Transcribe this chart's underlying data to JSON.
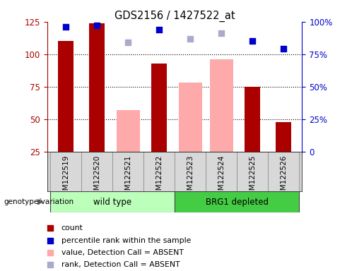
{
  "title": "GDS2156 / 1427522_at",
  "samples": [
    "GSM122519",
    "GSM122520",
    "GSM122521",
    "GSM122522",
    "GSM122523",
    "GSM122524",
    "GSM122525",
    "GSM122526"
  ],
  "count_values": [
    110,
    124,
    null,
    93,
    null,
    null,
    75,
    48
  ],
  "percentile_rank": [
    96,
    97,
    null,
    94,
    null,
    null,
    85,
    79
  ],
  "absent_value": [
    null,
    null,
    57,
    null,
    78,
    96,
    null,
    null
  ],
  "absent_rank": [
    null,
    null,
    84,
    null,
    87,
    91,
    null,
    null
  ],
  "left_ylim": [
    25,
    125
  ],
  "left_yticks": [
    25,
    50,
    75,
    100,
    125
  ],
  "right_ylim": [
    0,
    100
  ],
  "right_yticks": [
    0,
    25,
    50,
    75,
    100
  ],
  "right_yticklabels": [
    "0",
    "25%",
    "50%",
    "75%",
    "100%"
  ],
  "color_count": "#aa0000",
  "color_percentile": "#0000cc",
  "color_absent_value": "#ffaaaa",
  "color_absent_rank": "#aaaacc",
  "group_colors_wt": "#bbffbb",
  "group_colors_brg": "#44cc44",
  "bar_width": 0.5,
  "dot_size": 35,
  "grid_yticks": [
    50,
    75,
    100
  ]
}
